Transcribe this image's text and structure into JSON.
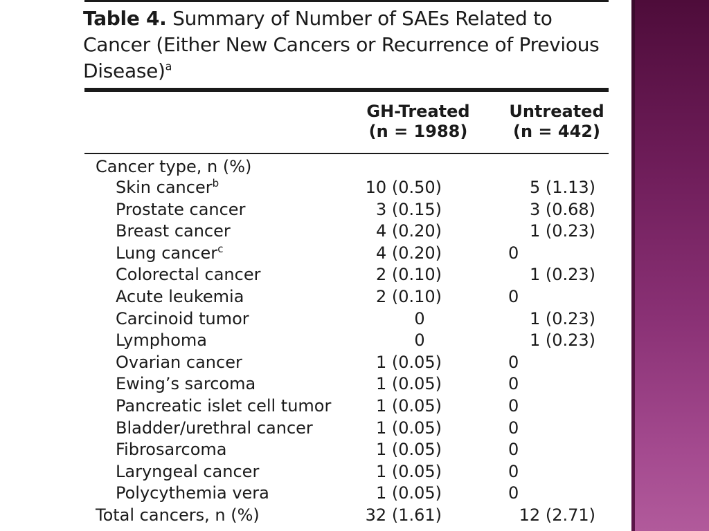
{
  "table": {
    "title_number": "Table 4.",
    "title_text": "Summary of Number of SAEs Related to Cancer (Either New Cancers or Recurrence of Previous Disease)",
    "title_footnote": "a",
    "columns": [
      {
        "line1": "GH-Treated",
        "line2": "(n = 1988)"
      },
      {
        "line1": "Untreated",
        "line2": "(n = 442)"
      }
    ],
    "group_label": "Cancer type, n (%)",
    "rows": [
      {
        "label": "Skin cancer",
        "footnote": "b",
        "gh": "10 (0.50)",
        "untreated": "5 (1.13)"
      },
      {
        "label": "Prostate cancer",
        "footnote": "",
        "gh": "3 (0.15)",
        "untreated": "3 (0.68)"
      },
      {
        "label": "Breast cancer",
        "footnote": "",
        "gh": "4 (0.20)",
        "untreated": "1 (0.23)"
      },
      {
        "label": "Lung cancer",
        "footnote": "c",
        "gh": "4 (0.20)",
        "untreated": "0"
      },
      {
        "label": "Colorectal cancer",
        "footnote": "",
        "gh": "2 (0.10)",
        "untreated": "1 (0.23)"
      },
      {
        "label": "Acute leukemia",
        "footnote": "",
        "gh": "2 (0.10)",
        "untreated": "0"
      },
      {
        "label": "Carcinoid tumor",
        "footnote": "",
        "gh": "0",
        "untreated": "1 (0.23)"
      },
      {
        "label": "Lymphoma",
        "footnote": "",
        "gh": "0",
        "untreated": "1 (0.23)"
      },
      {
        "label": "Ovarian cancer",
        "footnote": "",
        "gh": "1 (0.05)",
        "untreated": "0"
      },
      {
        "label": "Ewing’s sarcoma",
        "footnote": "",
        "gh": "1 (0.05)",
        "untreated": "0"
      },
      {
        "label": "Pancreatic islet cell tumor",
        "footnote": "",
        "gh": "1 (0.05)",
        "untreated": "0"
      },
      {
        "label": "Bladder/urethral cancer",
        "footnote": "",
        "gh": "1 (0.05)",
        "untreated": "0"
      },
      {
        "label": "Fibrosarcoma",
        "footnote": "",
        "gh": "1 (0.05)",
        "untreated": "0"
      },
      {
        "label": "Laryngeal cancer",
        "footnote": "",
        "gh": "1 (0.05)",
        "untreated": "0"
      },
      {
        "label": "Polycythemia vera",
        "footnote": "",
        "gh": "1 (0.05)",
        "untreated": "0"
      }
    ],
    "total": {
      "label": "Total cancers, n (%)",
      "gh": "32 (1.61)",
      "untreated": "12 (2.71)"
    }
  },
  "theme": {
    "accent_band": "#8a3175",
    "text": "#1a1a1a"
  }
}
